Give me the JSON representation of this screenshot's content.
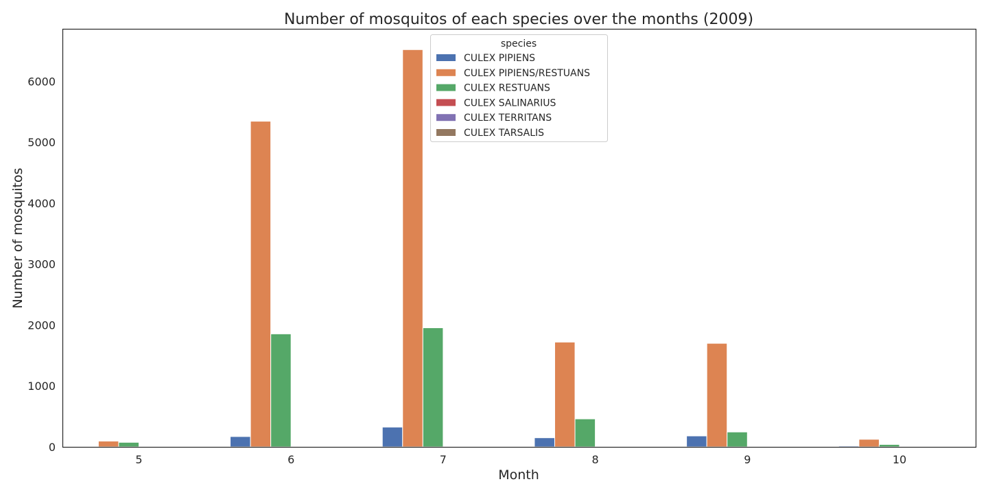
{
  "chart_data": {
    "type": "bar",
    "title": "Number of mosquitos of each species over the months (2009)",
    "xlabel": "Month",
    "ylabel": "Number of mosquitos",
    "categories": [
      "5",
      "6",
      "7",
      "8",
      "9",
      "10"
    ],
    "ylim": [
      0,
      6850
    ],
    "yticks": [
      "0",
      "1000",
      "2000",
      "3000",
      "4000",
      "5000",
      "6000"
    ],
    "ytick_values": [
      0,
      1000,
      2000,
      3000,
      4000,
      5000,
      6000
    ],
    "grid": false,
    "legend": {
      "title": "species",
      "placement": "top-center"
    },
    "series": [
      {
        "name": "CULEX PIPIENS",
        "color": "#4c72b0",
        "values": [
          0,
          170,
          325,
          150,
          180,
          15
        ]
      },
      {
        "name": "CULEX PIPIENS/RESTUANS",
        "color": "#dd8452",
        "values": [
          95,
          5345,
          6520,
          1720,
          1700,
          125
        ]
      },
      {
        "name": "CULEX RESTUANS",
        "color": "#55a868",
        "values": [
          75,
          1855,
          1955,
          460,
          245,
          40
        ]
      },
      {
        "name": "CULEX SALINARIUS",
        "color": "#c44e52",
        "values": [
          0,
          0,
          0,
          0,
          0,
          0
        ]
      },
      {
        "name": "CULEX TERRITANS",
        "color": "#8172b3",
        "values": [
          0,
          0,
          0,
          0,
          0,
          0
        ]
      },
      {
        "name": "CULEX TARSALIS",
        "color": "#937860",
        "values": [
          0,
          0,
          0,
          0,
          0,
          0
        ]
      }
    ]
  }
}
